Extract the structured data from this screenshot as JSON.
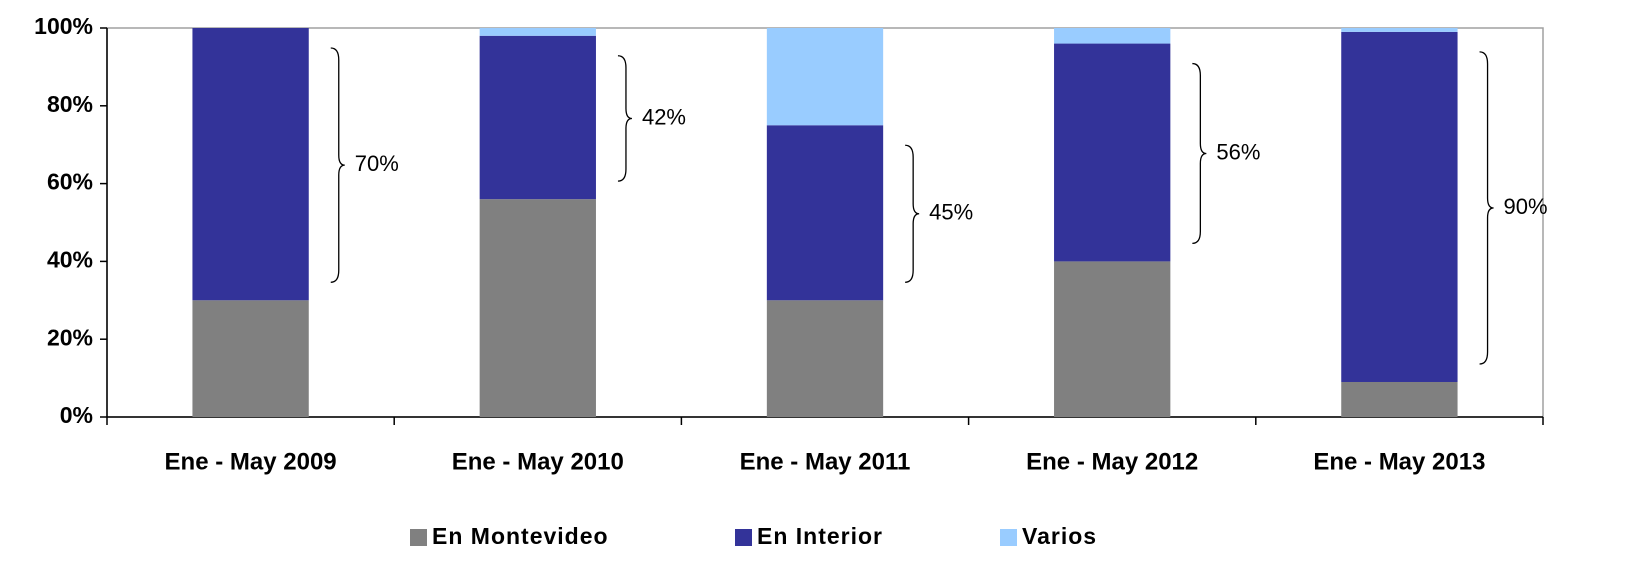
{
  "chart_data": {
    "type": "stacked_bar",
    "categories": [
      "Ene - May 2009",
      "Ene - May 2010",
      "Ene - May 2011",
      "Ene - May 2012",
      "Ene - May 2013"
    ],
    "series": [
      {
        "name": "En Montevideo",
        "color": "#808080",
        "values": [
          30,
          56,
          30,
          40,
          9
        ]
      },
      {
        "name": "En Interior",
        "color": "#333399",
        "values": [
          70,
          42,
          45,
          56,
          90
        ],
        "value_labels": [
          "70%",
          "42%",
          "45%",
          "56%",
          "90%"
        ]
      },
      {
        "name": "Varios",
        "color": "#99ccff",
        "values": [
          0,
          2,
          25,
          4,
          1
        ]
      }
    ],
    "ylim": [
      0,
      100
    ],
    "yticks": [
      {
        "value": 0,
        "label": "0%"
      },
      {
        "value": 20,
        "label": "20%"
      },
      {
        "value": 40,
        "label": "40%"
      },
      {
        "value": 60,
        "label": "60%"
      },
      {
        "value": 80,
        "label": "80%"
      },
      {
        "value": 100,
        "label": "100%"
      }
    ],
    "legend": "bottom"
  }
}
